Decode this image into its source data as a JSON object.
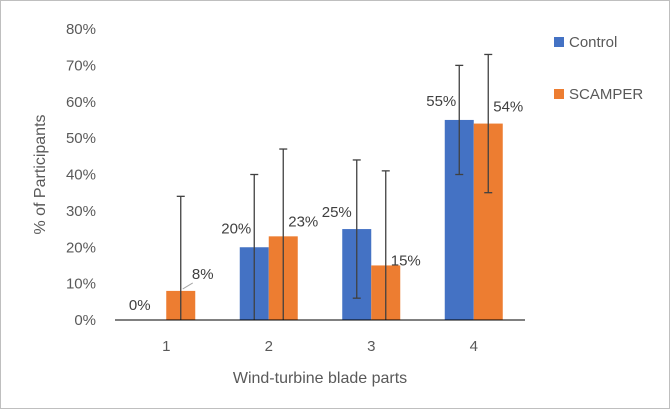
{
  "chart_data": {
    "type": "bar",
    "title": "",
    "xlabel": "Wind-turbine blade parts",
    "ylabel": "% of Participants",
    "categories": [
      "1",
      "2",
      "3",
      "4"
    ],
    "ylim": [
      0,
      80
    ],
    "ytick_step": 10,
    "ytick_labels": [
      "0%",
      "10%",
      "20%",
      "30%",
      "40%",
      "50%",
      "60%",
      "70%",
      "80%"
    ],
    "grid": false,
    "legend_position": "top-right",
    "series": [
      {
        "name": "Control",
        "color": "#4472C4",
        "values": [
          0,
          20,
          25,
          55
        ],
        "labels": [
          "0%",
          "20%",
          "25%",
          "55%"
        ],
        "error_low": [
          0,
          0,
          6,
          40
        ],
        "error_high": [
          0,
          40,
          44,
          70
        ]
      },
      {
        "name": "SCAMPER",
        "color": "#ED7D31",
        "values": [
          8,
          23,
          15,
          54
        ],
        "labels": [
          "8%",
          "23%",
          "15%",
          "54%"
        ],
        "error_low": [
          0,
          0,
          0,
          35
        ],
        "error_high": [
          34,
          47,
          41,
          73
        ]
      }
    ]
  }
}
